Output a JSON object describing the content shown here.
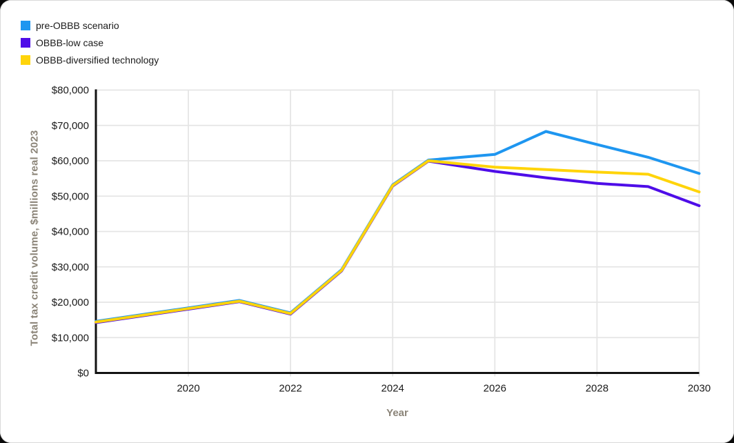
{
  "legend": {
    "items": [
      {
        "label": "pre-OBBB scenario",
        "color": "#1e96f0"
      },
      {
        "label": "OBBB-low case",
        "color": "#4e0de8"
      },
      {
        "label": "OBBB-diversified technology",
        "color": "#ffd40a"
      }
    ]
  },
  "chart_data": {
    "type": "line",
    "title": "",
    "xlabel": "Year",
    "ylabel": "Total tax credit volume, $millions real 2023",
    "x_range": [
      2018.19,
      2030
    ],
    "y_range": [
      0,
      80000
    ],
    "grid": true,
    "legend_position": "top-left",
    "x_ticks": [
      {
        "value": 2020,
        "label": "2020"
      },
      {
        "value": 2022,
        "label": "2022"
      },
      {
        "value": 2024,
        "label": "2024"
      },
      {
        "value": 2026,
        "label": "2026"
      },
      {
        "value": 2028,
        "label": "2028"
      },
      {
        "value": 2030,
        "label": "2030"
      }
    ],
    "y_ticks": [
      {
        "value": 0,
        "label": "$0"
      },
      {
        "value": 10000,
        "label": "$10,000"
      },
      {
        "value": 20000,
        "label": "$20,000"
      },
      {
        "value": 30000,
        "label": "$30,000"
      },
      {
        "value": 40000,
        "label": "$40,000"
      },
      {
        "value": 50000,
        "label": "$50,000"
      },
      {
        "value": 60000,
        "label": "$60,000"
      },
      {
        "value": 70000,
        "label": "$70,000"
      },
      {
        "value": 80000,
        "label": "$80,000"
      }
    ],
    "series": [
      {
        "name": "pre-OBBB scenario",
        "color": "#1e96f0",
        "points": [
          [
            2018.19,
            14600
          ],
          [
            2020,
            18400
          ],
          [
            2021,
            20500
          ],
          [
            2022,
            17000
          ],
          [
            2023,
            29200
          ],
          [
            2024,
            53200
          ],
          [
            2024.7,
            60200
          ],
          [
            2026,
            61800
          ],
          [
            2027,
            68300
          ],
          [
            2028,
            64600
          ],
          [
            2029,
            61000
          ],
          [
            2030,
            56400
          ]
        ]
      },
      {
        "name": "OBBB-low case",
        "color": "#4e0de8",
        "points": [
          [
            2018.19,
            14250
          ],
          [
            2020,
            18050
          ],
          [
            2021,
            20150
          ],
          [
            2022,
            16650
          ],
          [
            2023,
            28850
          ],
          [
            2024,
            52850
          ],
          [
            2024.7,
            59900
          ],
          [
            2026,
            57000
          ],
          [
            2027,
            55200
          ],
          [
            2028,
            53600
          ],
          [
            2029,
            52700
          ],
          [
            2030,
            47300
          ]
        ]
      },
      {
        "name": "OBBB-diversified technology",
        "color": "#ffd40a",
        "points": [
          [
            2018.19,
            14400
          ],
          [
            2020,
            18200
          ],
          [
            2021,
            20300
          ],
          [
            2022,
            16800
          ],
          [
            2023,
            29000
          ],
          [
            2024,
            53000
          ],
          [
            2024.7,
            60000
          ],
          [
            2026,
            58200
          ],
          [
            2027,
            57500
          ],
          [
            2028,
            56800
          ],
          [
            2029,
            56200
          ],
          [
            2030,
            51200
          ]
        ]
      }
    ],
    "style": {
      "grid_color": "#e5e5e5",
      "axis_color": "#121212",
      "tick_label_color": "#1a1a1a",
      "axis_title_color": "#8b8478",
      "line_width": 4
    }
  }
}
